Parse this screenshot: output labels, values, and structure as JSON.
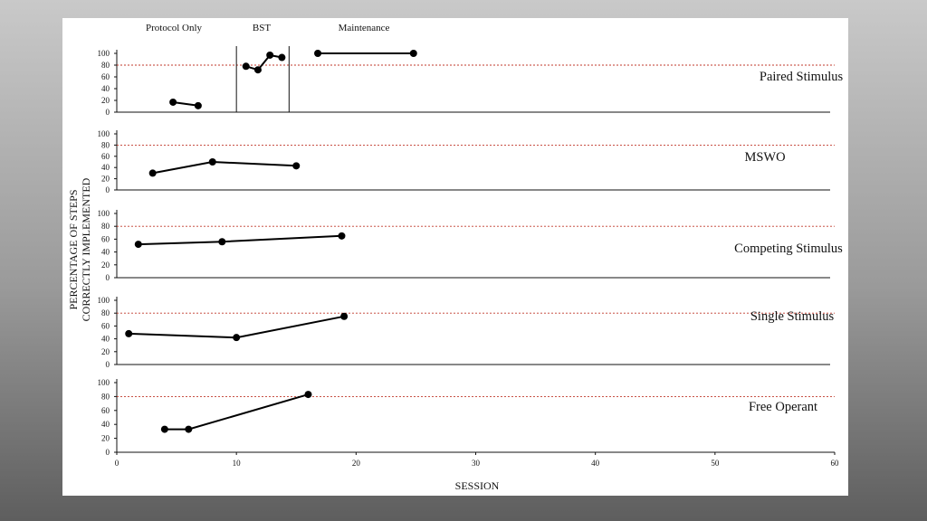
{
  "chart_data": {
    "type": "line",
    "xlabel": "SESSION",
    "ylabel_lines": [
      "PERCENTAGE OF STEPS",
      "CORRECTLY IMPLEMENTED"
    ],
    "xlim": [
      0,
      60
    ],
    "x_ticks": [
      0,
      10,
      20,
      30,
      40,
      50,
      60
    ],
    "ylim": [
      0,
      100
    ],
    "y_ticks": [
      0,
      20,
      40,
      60,
      80,
      100
    ],
    "criterion": 80,
    "phase_labels": [
      "Protocol Only",
      "BST",
      "Maintenance"
    ],
    "phase_change_sessions": [
      10,
      14.4
    ],
    "panels": [
      {
        "label": "Paired Stimulus",
        "segments": [
          [
            [
              4.7,
              17
            ],
            [
              6.8,
              11
            ]
          ],
          [
            [
              10.8,
              78
            ],
            [
              11.8,
              72
            ],
            [
              12.8,
              97
            ],
            [
              13.8,
              93
            ]
          ],
          [
            [
              16.8,
              100
            ],
            [
              24.8,
              100
            ]
          ]
        ]
      },
      {
        "label": "MSWO",
        "segments": [
          [
            [
              3,
              30
            ],
            [
              8,
              50
            ],
            [
              15,
              43
            ]
          ]
        ]
      },
      {
        "label": "Competing Stimulus",
        "segments": [
          [
            [
              1.8,
              52
            ],
            [
              8.8,
              56
            ],
            [
              18.8,
              65
            ]
          ]
        ]
      },
      {
        "label": "Single Stimulus",
        "segments": [
          [
            [
              1,
              48
            ],
            [
              10,
              42
            ],
            [
              19,
              75
            ]
          ]
        ]
      },
      {
        "label": "Free Operant",
        "segments": [
          [
            [
              4,
              33
            ],
            [
              6,
              33
            ],
            [
              16,
              83
            ]
          ]
        ]
      }
    ]
  }
}
